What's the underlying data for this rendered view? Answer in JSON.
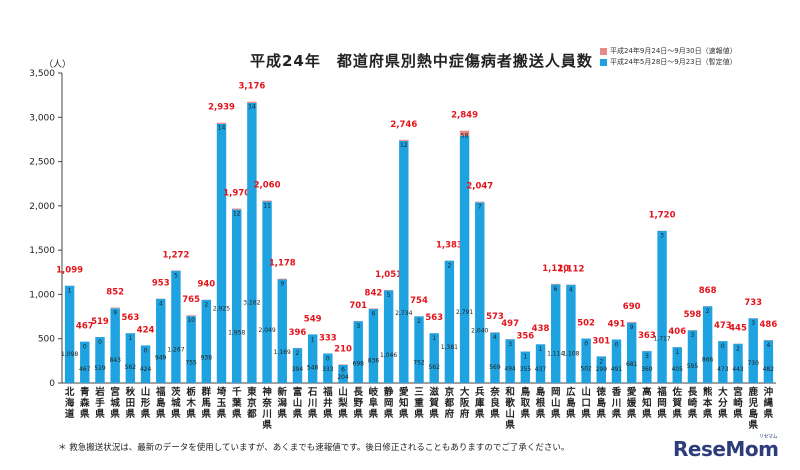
{
  "chart_data": {
    "type": "bar",
    "title": "平成24年　都道府県別熱中症傷病者搬送人員数",
    "ylabel": "（人）",
    "ylim": [
      0,
      3500
    ],
    "yticks": [
      0,
      500,
      1000,
      1500,
      2000,
      2500,
      3000,
      3500
    ],
    "ytick_labels": [
      "0",
      "500",
      "1,000",
      "1,500",
      "2,000",
      "2,500",
      "3,000",
      "3,500"
    ],
    "legend_position": "top-right",
    "grid": false,
    "categories": [
      "北海道",
      "青森県",
      "岩手県",
      "宮城県",
      "秋田県",
      "山形県",
      "福島県",
      "茨城県",
      "栃木県",
      "群馬県",
      "埼玉県",
      "千葉県",
      "東京都",
      "神奈川県",
      "新潟県",
      "富山県",
      "石川県",
      "福井県",
      "山梨県",
      "長野県",
      "岐阜県",
      "静岡県",
      "愛知県",
      "三重県",
      "滋賀県",
      "京都府",
      "大阪府",
      "兵庫県",
      "奈良県",
      "和歌山県",
      "鳥取県",
      "島根県",
      "岡山県",
      "広島県",
      "山口県",
      "徳島県",
      "香川県",
      "愛媛県",
      "高知県",
      "福岡県",
      "佐賀県",
      "長崎県",
      "熊本県",
      "大分県",
      "宮崎県",
      "鹿児島県",
      "沖縄県"
    ],
    "series": [
      {
        "name": "平成24年5月28日～9月23日（暫定値）",
        "color": "#1fa3e0",
        "values": [
          1098,
          467,
          519,
          843,
          562,
          424,
          949,
          1267,
          755,
          938,
          2925,
          1958,
          3162,
          2049,
          1169,
          394,
          548,
          333,
          204,
          698,
          836,
          1046,
          2734,
          752,
          562,
          1381,
          2791,
          2040,
          569,
          494,
          355,
          437,
          1114,
          1108,
          502,
          299,
          491,
          681,
          360,
          1717,
          405,
          595,
          866,
          473,
          443,
          730,
          482
        ]
      },
      {
        "name": "平成24年9月24日～9月30日（速報値）",
        "color": "#e88a8a",
        "values": [
          1,
          0,
          0,
          9,
          1,
          0,
          4,
          5,
          10,
          2,
          14,
          12,
          14,
          11,
          9,
          2,
          1,
          0,
          6,
          3,
          6,
          5,
          12,
          2,
          1,
          2,
          58,
          7,
          4,
          3,
          1,
          1,
          6,
          4,
          0,
          2,
          0,
          9,
          3,
          3,
          1,
          3,
          2,
          0,
          2,
          3,
          4
        ]
      }
    ],
    "totals": [
      "1,099",
      "467",
      "519",
      "852",
      "563",
      "424",
      "953",
      "1,272",
      "765",
      "940",
      "2,939",
      "1,970",
      "3,176",
      "2,060",
      "1,178",
      "396",
      "549",
      "333",
      "210",
      "701",
      "842",
      "1,051",
      "2,746",
      "754",
      "563",
      "1,383",
      "2,849",
      "2,047",
      "573",
      "497",
      "356",
      "438",
      "1,120",
      "1,112",
      "502",
      "301",
      "491",
      "690",
      "363",
      "1,720",
      "406",
      "598",
      "868",
      "473",
      "445",
      "733",
      "486"
    ],
    "main_labels": [
      "1,098",
      "467",
      "519",
      "843",
      "562",
      "424",
      "949",
      "1,267",
      "755",
      "938",
      "2,925",
      "1,958",
      "3,162",
      "2,049",
      "1,169",
      "394",
      "548",
      "333",
      "204",
      "698",
      "836",
      "1,046",
      "2,734",
      "752",
      "562",
      "1,381",
      "2,791",
      "2,040",
      "569",
      "494",
      "355",
      "437",
      "1,114",
      "1,108",
      "502",
      "299",
      "491",
      "681",
      "360",
      "1,717",
      "405",
      "595",
      "866",
      "473",
      "443",
      "730",
      "482"
    ]
  },
  "legend": {
    "items": [
      {
        "label": "平成24年9月24日～9月30日（速報値）",
        "color": "#e88a8a"
      },
      {
        "label": "平成24年5月28日～9月23日（暫定値）",
        "color": "#1fa3e0"
      }
    ]
  },
  "footnote": "＊ 救急搬送状況は、最新のデータを使用していますが、あくまでも速報値です。後日修正されることもありますのでご了承ください。",
  "logo": {
    "text": "ReseMom",
    "sub": "リセマム"
  }
}
